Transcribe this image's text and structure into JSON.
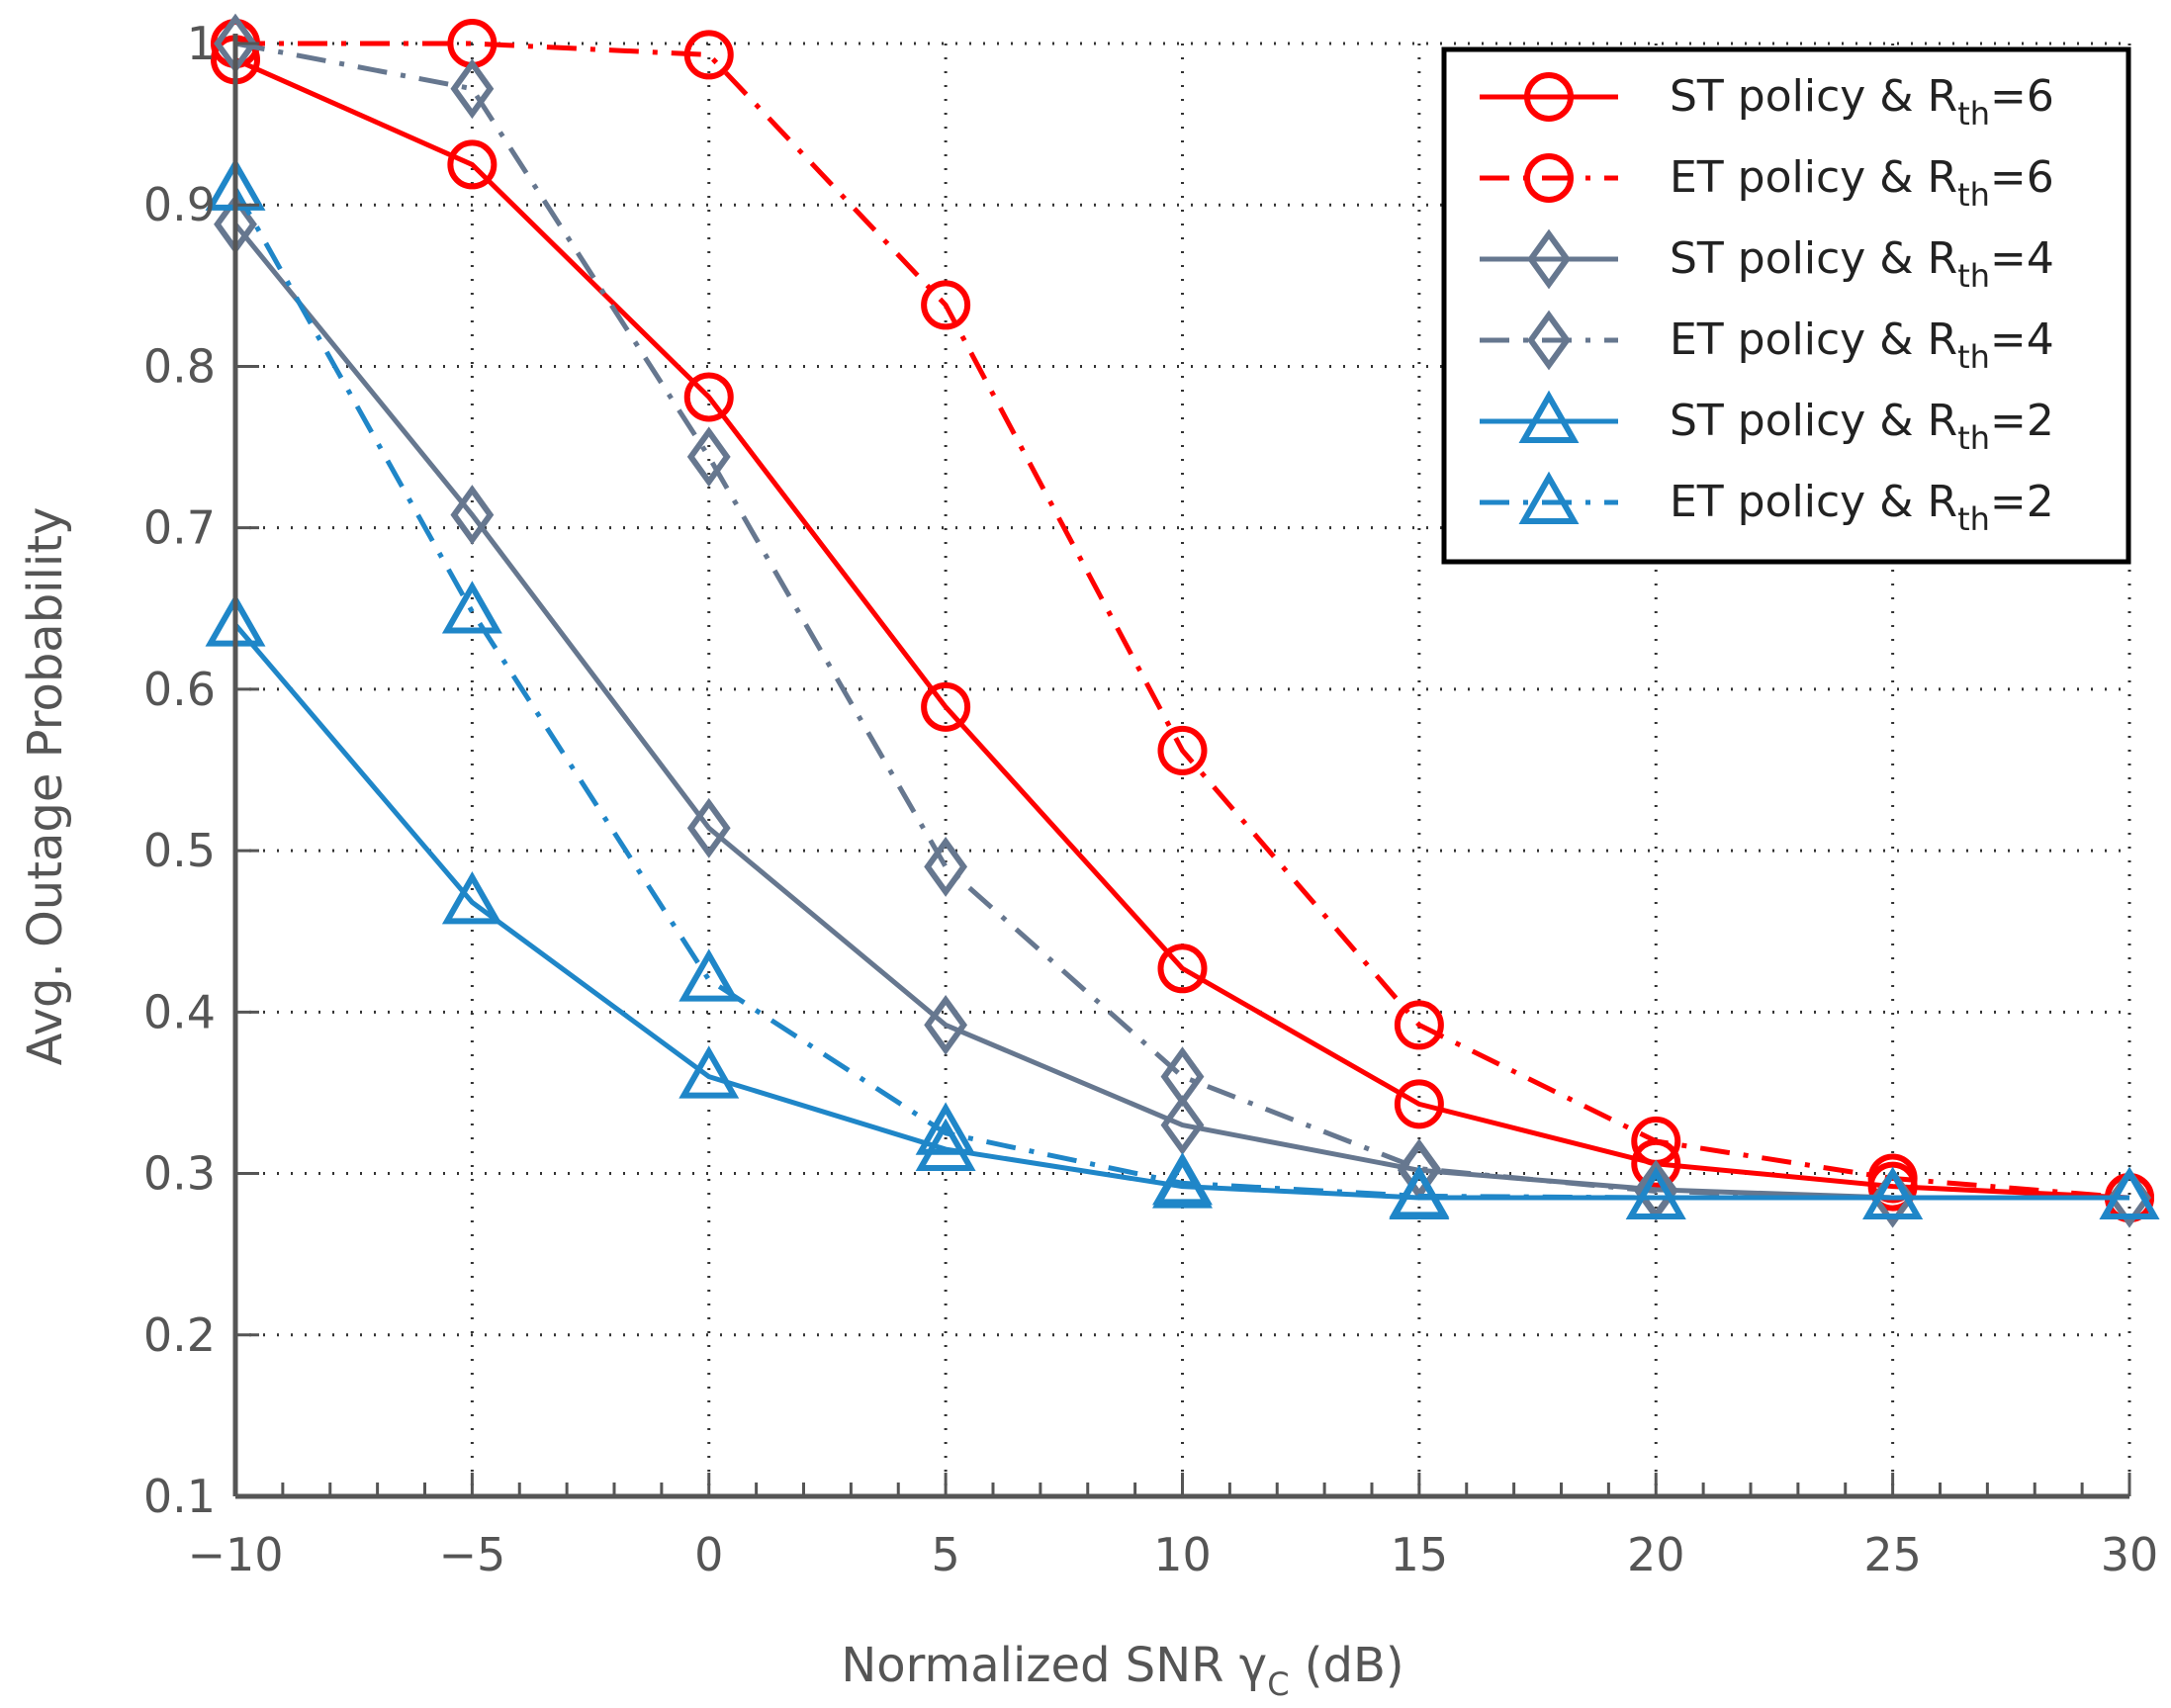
{
  "chart_data": {
    "type": "line",
    "xlabel": "Normalized SNR γ",
    "xlabel_sub": "C",
    "xlabel_suffix": " (dB)",
    "ylabel": "Avg. Outage Probability",
    "xlim": [
      -10,
      30
    ],
    "ylim": [
      0.1,
      1.0
    ],
    "grid": true,
    "legend_position": "top-right",
    "x": [
      -10,
      -5,
      0,
      5,
      10,
      15,
      20,
      25,
      30
    ],
    "xticks": [
      "−10",
      "−5",
      "0",
      "5",
      "10",
      "15",
      "20",
      "25",
      "30"
    ],
    "yticks": [
      "0.1",
      "0.2",
      "0.3",
      "0.4",
      "0.5",
      "0.6",
      "0.7",
      "0.8",
      "0.9",
      "1"
    ],
    "series": [
      {
        "name": "ST policy & R_th=6",
        "label_main": "ST policy & R",
        "label_sub": "th",
        "label_tail": "=6",
        "color": "#ff0000",
        "style": "solid",
        "marker": "circle",
        "values": [
          0.99,
          0.925,
          0.781,
          0.589,
          0.427,
          0.343,
          0.306,
          0.292,
          0.285
        ]
      },
      {
        "name": "ET policy & R_th=6",
        "label_main": "ET policy & R",
        "label_sub": "th",
        "label_tail": "=6",
        "color": "#ff0000",
        "style": "dashdot",
        "marker": "circle",
        "values": [
          1.0,
          1.0,
          0.993,
          0.838,
          0.562,
          0.392,
          0.32,
          0.297,
          0.285
        ]
      },
      {
        "name": "ST policy & R_th=4",
        "label_main": "ST policy & R",
        "label_sub": "th",
        "label_tail": "=4",
        "color": "#66778f",
        "style": "solid",
        "marker": "diamond",
        "values": [
          0.888,
          0.708,
          0.514,
          0.392,
          0.33,
          0.302,
          0.29,
          0.285,
          0.285
        ]
      },
      {
        "name": "ET policy & R_th=4",
        "label_main": "ET policy & R",
        "label_sub": "th",
        "label_tail": "=4",
        "color": "#66778f",
        "style": "dashdot",
        "marker": "diamond",
        "values": [
          1.0,
          0.972,
          0.744,
          0.49,
          0.36,
          0.303,
          0.289,
          0.285,
          0.285
        ]
      },
      {
        "name": "ST policy & R_th=2",
        "label_main": "ST policy & R",
        "label_sub": "th",
        "label_tail": "=2",
        "color": "#1f86c8",
        "style": "solid",
        "marker": "triangle",
        "values": [
          0.64,
          0.468,
          0.36,
          0.315,
          0.292,
          0.285,
          0.285,
          0.285,
          0.285
        ]
      },
      {
        "name": "ET policy & R_th=2",
        "label_main": "ET policy & R",
        "label_sub": "th",
        "label_tail": "=2",
        "color": "#1f86c8",
        "style": "dashdot",
        "marker": "triangle",
        "values": [
          0.91,
          0.648,
          0.42,
          0.325,
          0.294,
          0.286,
          0.285,
          0.285,
          0.285
        ]
      }
    ]
  }
}
